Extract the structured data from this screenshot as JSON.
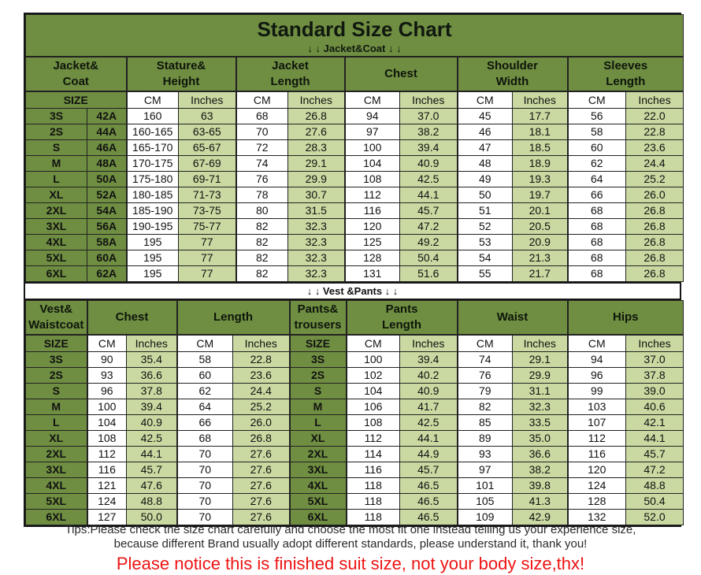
{
  "title": "Standard Size Chart",
  "banners": {
    "jacket": "↓ ↓  Jacket&Coat ↓ ↓",
    "vest": "↓ ↓  Vest &Pants ↓ ↓"
  },
  "colors": {
    "header_green": "#6f8e41",
    "light_green": "#c9d9a1",
    "notice_red": "#ee1313"
  },
  "jacket_table": {
    "groups": [
      "Jacket&\nCoat",
      "Stature&\nHeight",
      "Jacket\nLength",
      "Chest",
      "Shoulder\nWidth",
      "Sleeves\nLength"
    ],
    "size_label": "SIZE",
    "cm_label": "CM",
    "inches_label": "Inches",
    "rows": [
      {
        "size": "3S",
        "fit": "42A",
        "values": [
          "160",
          "63",
          "68",
          "26.8",
          "94",
          "37.0",
          "45",
          "17.7",
          "56",
          "22.0"
        ]
      },
      {
        "size": "2S",
        "fit": "44A",
        "values": [
          "160-165",
          "63-65",
          "70",
          "27.6",
          "97",
          "38.2",
          "46",
          "18.1",
          "58",
          "22.8"
        ]
      },
      {
        "size": "S",
        "fit": "46A",
        "values": [
          "165-170",
          "65-67",
          "72",
          "28.3",
          "100",
          "39.4",
          "47",
          "18.5",
          "60",
          "23.6"
        ]
      },
      {
        "size": "M",
        "fit": "48A",
        "values": [
          "170-175",
          "67-69",
          "74",
          "29.1",
          "104",
          "40.9",
          "48",
          "18.9",
          "62",
          "24.4"
        ]
      },
      {
        "size": "L",
        "fit": "50A",
        "values": [
          "175-180",
          "69-71",
          "76",
          "29.9",
          "108",
          "42.5",
          "49",
          "19.3",
          "64",
          "25.2"
        ]
      },
      {
        "size": "XL",
        "fit": "52A",
        "values": [
          "180-185",
          "71-73",
          "78",
          "30.7",
          "112",
          "44.1",
          "50",
          "19.7",
          "66",
          "26.0"
        ]
      },
      {
        "size": "2XL",
        "fit": "54A",
        "values": [
          "185-190",
          "73-75",
          "80",
          "31.5",
          "116",
          "45.7",
          "51",
          "20.1",
          "68",
          "26.8"
        ]
      },
      {
        "size": "3XL",
        "fit": "56A",
        "values": [
          "190-195",
          "75-77",
          "82",
          "32.3",
          "120",
          "47.2",
          "52",
          "20.5",
          "68",
          "26.8"
        ]
      },
      {
        "size": "4XL",
        "fit": "58A",
        "values": [
          "195",
          "77",
          "82",
          "32.3",
          "125",
          "49.2",
          "53",
          "20.9",
          "68",
          "26.8"
        ]
      },
      {
        "size": "5XL",
        "fit": "60A",
        "values": [
          "195",
          "77",
          "82",
          "32.3",
          "128",
          "50.4",
          "54",
          "21.3",
          "68",
          "26.8"
        ]
      },
      {
        "size": "6XL",
        "fit": "62A",
        "values": [
          "195",
          "77",
          "82",
          "32.3",
          "131",
          "51.6",
          "55",
          "21.7",
          "68",
          "26.8"
        ]
      }
    ]
  },
  "vest_table": {
    "groups": [
      "Vest&\nWaistcoat",
      "Chest",
      "Length",
      "Pants&\ntrousers",
      "Pants\nLength",
      "Waist",
      "Hips"
    ],
    "size_label": "SIZE",
    "cm_label": "CM",
    "inches_label": "Inches",
    "rows": [
      {
        "vest_size": "3S",
        "vest_values": [
          "90",
          "35.4",
          "58",
          "22.8"
        ],
        "pants_size": "3S",
        "pants_values": [
          "100",
          "39.4",
          "74",
          "29.1",
          "94",
          "37.0"
        ]
      },
      {
        "vest_size": "2S",
        "vest_values": [
          "93",
          "36.6",
          "60",
          "23.6"
        ],
        "pants_size": "2S",
        "pants_values": [
          "102",
          "40.2",
          "76",
          "29.9",
          "96",
          "37.8"
        ]
      },
      {
        "vest_size": "S",
        "vest_values": [
          "96",
          "37.8",
          "62",
          "24.4"
        ],
        "pants_size": "S",
        "pants_values": [
          "104",
          "40.9",
          "79",
          "31.1",
          "99",
          "39.0"
        ]
      },
      {
        "vest_size": "M",
        "vest_values": [
          "100",
          "39.4",
          "64",
          "25.2"
        ],
        "pants_size": "M",
        "pants_values": [
          "106",
          "41.7",
          "82",
          "32.3",
          "103",
          "40.6"
        ]
      },
      {
        "vest_size": "L",
        "vest_values": [
          "104",
          "40.9",
          "66",
          "26.0"
        ],
        "pants_size": "L",
        "pants_values": [
          "108",
          "42.5",
          "85",
          "33.5",
          "107",
          "42.1"
        ]
      },
      {
        "vest_size": "XL",
        "vest_values": [
          "108",
          "42.5",
          "68",
          "26.8"
        ],
        "pants_size": "XL",
        "pants_values": [
          "112",
          "44.1",
          "89",
          "35.0",
          "112",
          "44.1"
        ]
      },
      {
        "vest_size": "2XL",
        "vest_values": [
          "112",
          "44.1",
          "70",
          "27.6"
        ],
        "pants_size": "2XL",
        "pants_values": [
          "114",
          "44.9",
          "93",
          "36.6",
          "116",
          "45.7"
        ]
      },
      {
        "vest_size": "3XL",
        "vest_values": [
          "116",
          "45.7",
          "70",
          "27.6"
        ],
        "pants_size": "3XL",
        "pants_values": [
          "116",
          "45.7",
          "97",
          "38.2",
          "120",
          "47.2"
        ]
      },
      {
        "vest_size": "4XL",
        "vest_values": [
          "121",
          "47.6",
          "70",
          "27.6"
        ],
        "pants_size": "4XL",
        "pants_values": [
          "118",
          "46.5",
          "101",
          "39.8",
          "124",
          "48.8"
        ]
      },
      {
        "vest_size": "5XL",
        "vest_values": [
          "124",
          "48.8",
          "70",
          "27.6"
        ],
        "pants_size": "5XL",
        "pants_values": [
          "118",
          "46.5",
          "105",
          "41.3",
          "128",
          "50.4"
        ]
      },
      {
        "vest_size": "6XL",
        "vest_values": [
          "127",
          "50.0",
          "70",
          "27.6"
        ],
        "pants_size": "6XL",
        "pants_values": [
          "118",
          "46.5",
          "109",
          "42.9",
          "132",
          "52.0"
        ]
      }
    ]
  },
  "footer": {
    "tips_line1": "Tips:Please check the size chart carefully and choose the most fit one instead telling us your experience size,",
    "tips_line2": "because different Brand usually adopt different standards, please understand it, thank you!",
    "notice": "Please notice this is finished suit size, not your body size,thx!"
  }
}
